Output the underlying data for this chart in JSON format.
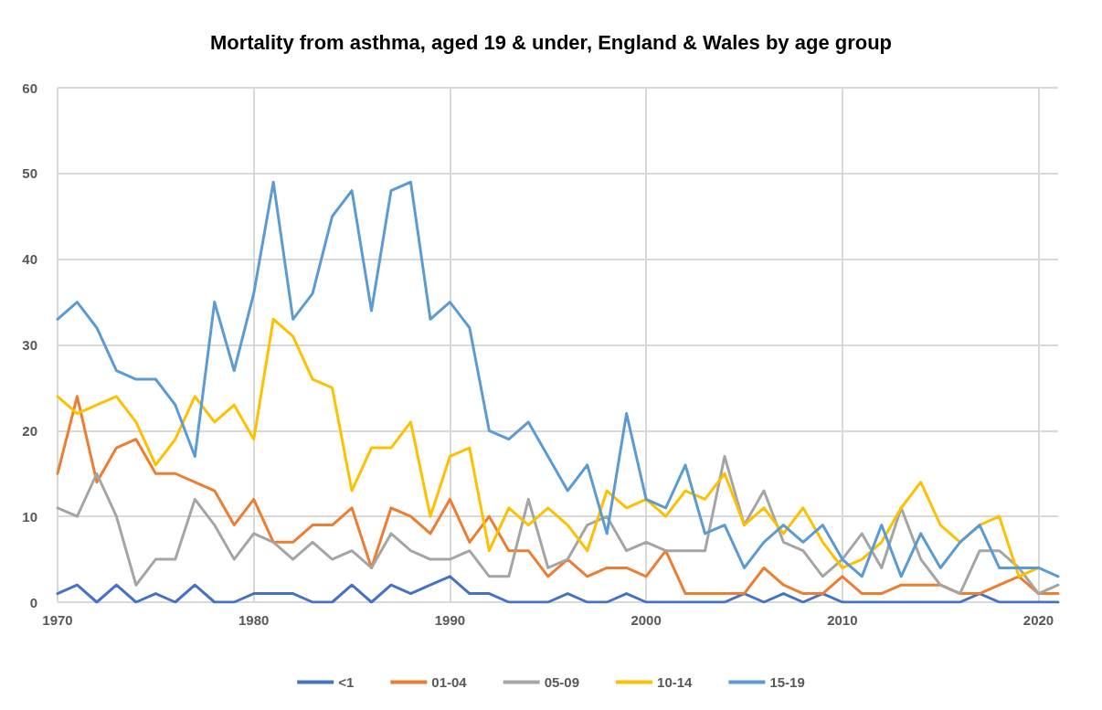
{
  "chart_data": {
    "type": "line",
    "title": "Mortality from asthma, aged 19 & under, England & Wales by age group",
    "x": [
      1970,
      1971,
      1972,
      1973,
      1974,
      1975,
      1976,
      1977,
      1978,
      1979,
      1980,
      1981,
      1982,
      1983,
      1984,
      1985,
      1986,
      1987,
      1988,
      1989,
      1990,
      1991,
      1992,
      1993,
      1994,
      1995,
      1996,
      1997,
      1998,
      1999,
      2000,
      2001,
      2002,
      2003,
      2004,
      2005,
      2006,
      2007,
      2008,
      2009,
      2010,
      2011,
      2012,
      2013,
      2014,
      2015,
      2016,
      2017,
      2018,
      2019,
      2020,
      2021
    ],
    "series": [
      {
        "name": "<1",
        "color": "#4472c4",
        "values": [
          1,
          2,
          0,
          2,
          0,
          1,
          0,
          2,
          0,
          0,
          1,
          1,
          1,
          0,
          0,
          2,
          0,
          2,
          1,
          2,
          3,
          1,
          1,
          0,
          0,
          0,
          1,
          0,
          0,
          1,
          0,
          0,
          0,
          0,
          0,
          1,
          0,
          1,
          0,
          1,
          0,
          0,
          0,
          0,
          0,
          0,
          0,
          1,
          0,
          0,
          0,
          0
        ]
      },
      {
        "name": "01-04",
        "color": "#ed7d31",
        "values": [
          15,
          24,
          14,
          18,
          19,
          15,
          15,
          14,
          13,
          9,
          12,
          7,
          7,
          9,
          9,
          11,
          4,
          11,
          10,
          8,
          12,
          7,
          10,
          6,
          6,
          3,
          5,
          3,
          4,
          4,
          3,
          6,
          1,
          1,
          1,
          1,
          4,
          2,
          1,
          1,
          3,
          1,
          1,
          2,
          2,
          2,
          1,
          1,
          2,
          3,
          1,
          1
        ]
      },
      {
        "name": "05-09",
        "color": "#a5a5a5",
        "values": [
          11,
          10,
          15,
          10,
          2,
          5,
          5,
          12,
          9,
          5,
          8,
          7,
          5,
          7,
          5,
          6,
          4,
          8,
          6,
          5,
          5,
          6,
          3,
          3,
          12,
          4,
          5,
          9,
          10,
          6,
          7,
          6,
          6,
          6,
          17,
          9,
          13,
          7,
          6,
          3,
          5,
          8,
          4,
          11,
          5,
          2,
          1,
          6,
          6,
          4,
          1,
          2
        ]
      },
      {
        "name": "10-14",
        "color": "#ffc000",
        "values": [
          24,
          22,
          23,
          24,
          21,
          16,
          19,
          24,
          21,
          23,
          19,
          33,
          31,
          26,
          25,
          13,
          18,
          18,
          21,
          10,
          17,
          18,
          6,
          11,
          9,
          11,
          9,
          6,
          13,
          11,
          12,
          10,
          13,
          12,
          15,
          9,
          11,
          8,
          11,
          7,
          4,
          5,
          7,
          11,
          14,
          9,
          7,
          9,
          10,
          3,
          4,
          null
        ]
      },
      {
        "name": "15-19",
        "color": "#5b9bd5",
        "values": [
          33,
          35,
          32,
          27,
          26,
          26,
          23,
          17,
          35,
          27,
          36,
          49,
          33,
          36,
          45,
          48,
          34,
          48,
          49,
          33,
          35,
          32,
          20,
          19,
          21,
          17,
          13,
          16,
          8,
          22,
          12,
          11,
          16,
          8,
          9,
          4,
          7,
          9,
          7,
          9,
          5,
          3,
          9,
          3,
          8,
          4,
          7,
          9,
          4,
          4,
          4,
          3
        ]
      }
    ],
    "xlim": [
      1970,
      2021
    ],
    "xticks": [
      1970,
      1980,
      1990,
      2000,
      2010,
      2020
    ],
    "ylim": [
      0,
      60
    ],
    "yticks": [
      0,
      10,
      20,
      30,
      40,
      50,
      60
    ],
    "grid": true,
    "legend": "bottom",
    "marker": "none",
    "line_style": "solid"
  }
}
